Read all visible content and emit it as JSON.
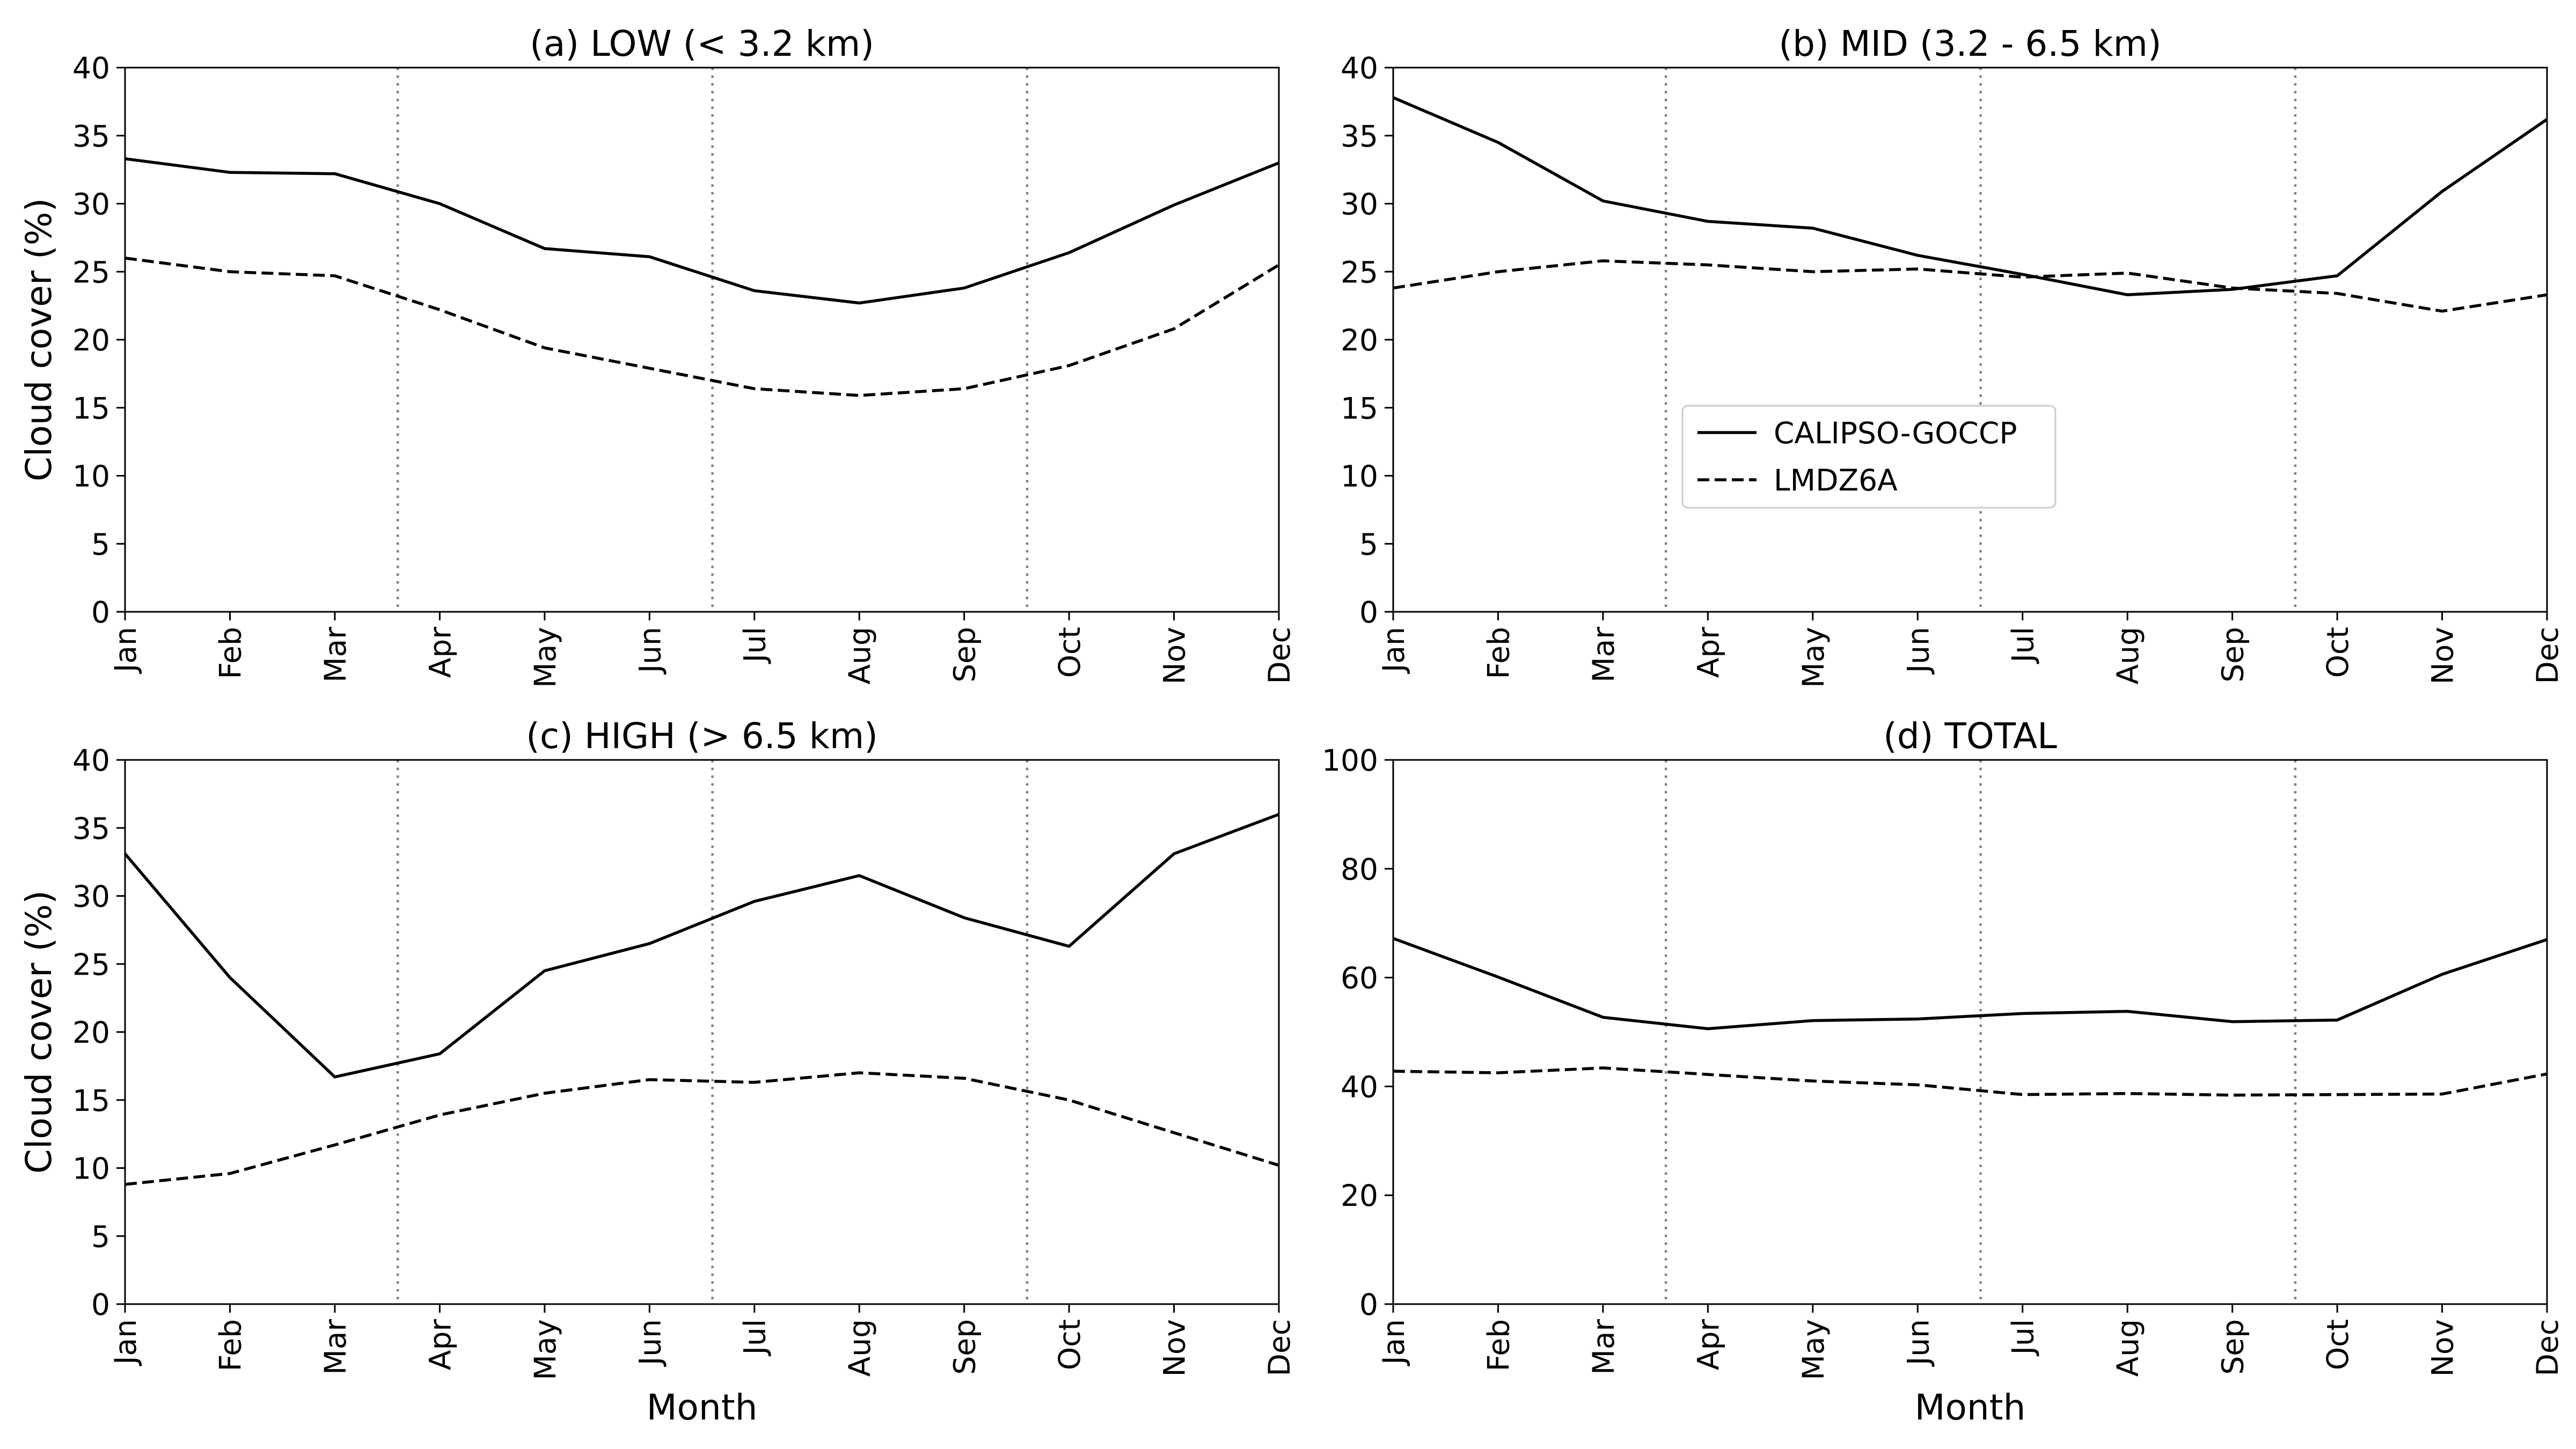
{
  "chart_data": [
    {
      "type": "line",
      "title": "(a) LOW (< 3.2 km)",
      "xlabel": "",
      "ylabel": "Cloud cover (%)",
      "categories": [
        "Jan",
        "Feb",
        "Mar",
        "Apr",
        "May",
        "Jun",
        "Jul",
        "Aug",
        "Sep",
        "Oct",
        "Nov",
        "Dec"
      ],
      "ylim": [
        0,
        40
      ],
      "yticks": [
        0,
        5,
        10,
        15,
        20,
        25,
        30,
        35,
        40
      ],
      "season_lines": [
        2.6,
        5.6,
        8.6
      ],
      "series": [
        {
          "name": "CALIPSO-GOCCP",
          "style": "solid",
          "values": [
            33.3,
            32.3,
            32.2,
            30.0,
            26.7,
            26.1,
            23.6,
            22.7,
            23.8,
            26.4,
            29.9,
            33.0
          ]
        },
        {
          "name": "LMDZ6A",
          "style": "dashed",
          "values": [
            26.0,
            25.0,
            24.7,
            22.2,
            19.4,
            17.9,
            16.4,
            15.9,
            16.4,
            18.1,
            20.8,
            25.5
          ]
        }
      ]
    },
    {
      "type": "line",
      "title": "(b) MID (3.2 - 6.5 km)",
      "xlabel": "",
      "ylabel": "",
      "categories": [
        "Jan",
        "Feb",
        "Mar",
        "Apr",
        "May",
        "Jun",
        "Jul",
        "Aug",
        "Sep",
        "Oct",
        "Nov",
        "Dec"
      ],
      "ylim": [
        0,
        40
      ],
      "yticks": [
        0,
        5,
        10,
        15,
        20,
        25,
        30,
        35,
        40
      ],
      "season_lines": [
        2.6,
        5.6,
        8.6
      ],
      "legend": {
        "placement": "center-left",
        "entries": [
          "CALIPSO-GOCCP",
          "LMDZ6A"
        ]
      },
      "series": [
        {
          "name": "CALIPSO-GOCCP",
          "style": "solid",
          "values": [
            37.8,
            34.5,
            30.2,
            28.7,
            28.2,
            26.2,
            24.8,
            23.3,
            23.7,
            24.7,
            30.9,
            36.2
          ]
        },
        {
          "name": "LMDZ6A",
          "style": "dashed",
          "values": [
            23.8,
            25.0,
            25.8,
            25.5,
            25.0,
            25.2,
            24.6,
            24.9,
            23.8,
            23.4,
            22.1,
            23.3
          ]
        }
      ]
    },
    {
      "type": "line",
      "title": "(c) HIGH (> 6.5 km)",
      "xlabel": "Month",
      "ylabel": "Cloud cover (%)",
      "categories": [
        "Jan",
        "Feb",
        "Mar",
        "Apr",
        "May",
        "Jun",
        "Jul",
        "Aug",
        "Sep",
        "Oct",
        "Nov",
        "Dec"
      ],
      "ylim": [
        0,
        40
      ],
      "yticks": [
        0,
        5,
        10,
        15,
        20,
        25,
        30,
        35,
        40
      ],
      "season_lines": [
        2.6,
        5.6,
        8.6
      ],
      "series": [
        {
          "name": "CALIPSO-GOCCP",
          "style": "solid",
          "values": [
            33.1,
            24.0,
            16.7,
            18.4,
            24.5,
            26.5,
            29.6,
            31.5,
            28.4,
            26.3,
            33.1,
            36.0
          ]
        },
        {
          "name": "LMDZ6A",
          "style": "dashed",
          "values": [
            8.8,
            9.6,
            11.7,
            13.9,
            15.5,
            16.5,
            16.3,
            17.0,
            16.6,
            15.0,
            12.6,
            10.2
          ]
        }
      ]
    },
    {
      "type": "line",
      "title": "(d) TOTAL",
      "xlabel": "Month",
      "ylabel": "",
      "categories": [
        "Jan",
        "Feb",
        "Mar",
        "Apr",
        "May",
        "Jun",
        "Jul",
        "Aug",
        "Sep",
        "Oct",
        "Nov",
        "Dec"
      ],
      "ylim": [
        0,
        100
      ],
      "yticks": [
        0,
        20,
        40,
        60,
        80,
        100
      ],
      "season_lines": [
        2.6,
        5.6,
        8.6
      ],
      "series": [
        {
          "name": "CALIPSO-GOCCP",
          "style": "solid",
          "values": [
            67.2,
            60.1,
            52.7,
            50.6,
            52.1,
            52.4,
            53.4,
            53.8,
            51.9,
            52.2,
            60.6,
            67.0
          ]
        },
        {
          "name": "LMDZ6A",
          "style": "dashed",
          "values": [
            42.8,
            42.5,
            43.4,
            42.2,
            41.0,
            40.3,
            38.5,
            38.7,
            38.4,
            38.5,
            38.6,
            42.3
          ]
        }
      ]
    }
  ]
}
